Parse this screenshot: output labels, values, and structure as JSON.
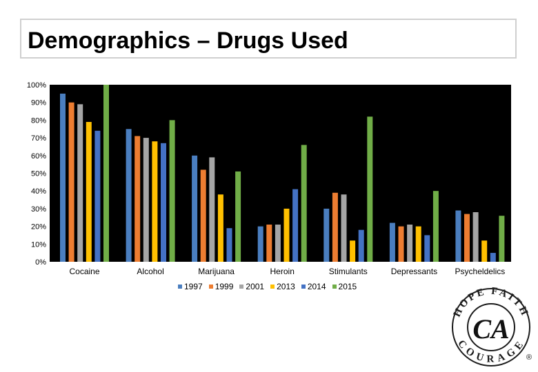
{
  "page": {
    "title": "Demographics – Drugs Used"
  },
  "chart_data": {
    "type": "bar",
    "categories": [
      "Cocaine",
      "Alcohol",
      "Marijuana",
      "Heroin",
      "Stimulants",
      "Depressants",
      "Psycheldelics"
    ],
    "series": [
      {
        "name": "1997",
        "color": "#4a7ebf",
        "values": [
          95,
          75,
          60,
          20,
          30,
          22,
          29
        ]
      },
      {
        "name": "1999",
        "color": "#ed7d31",
        "values": [
          90,
          71,
          52,
          21,
          39,
          20,
          27
        ]
      },
      {
        "name": "2001",
        "color": "#a5a5a5",
        "values": [
          89,
          70,
          59,
          21,
          38,
          21,
          28
        ]
      },
      {
        "name": "2013",
        "color": "#ffc000",
        "values": [
          79,
          68,
          38,
          30,
          12,
          20,
          12
        ]
      },
      {
        "name": "2014",
        "color": "#4472c4",
        "values": [
          74,
          67,
          19,
          41,
          18,
          15,
          5
        ]
      },
      {
        "name": "2015",
        "color": "#70ad47",
        "values": [
          100,
          80,
          51,
          66,
          82,
          40,
          26
        ]
      }
    ],
    "yticks": [
      "0%",
      "10%",
      "20%",
      "30%",
      "40%",
      "50%",
      "60%",
      "70%",
      "80%",
      "90%",
      "100%"
    ],
    "ylim": [
      0,
      100
    ],
    "plot_background": "#000000",
    "legend_position": "bottom",
    "grid": false
  },
  "logo": {
    "arc_top": "HOPE FAITH",
    "initials": "CA",
    "arc_bottom": "COURAGE",
    "registered": "®"
  }
}
